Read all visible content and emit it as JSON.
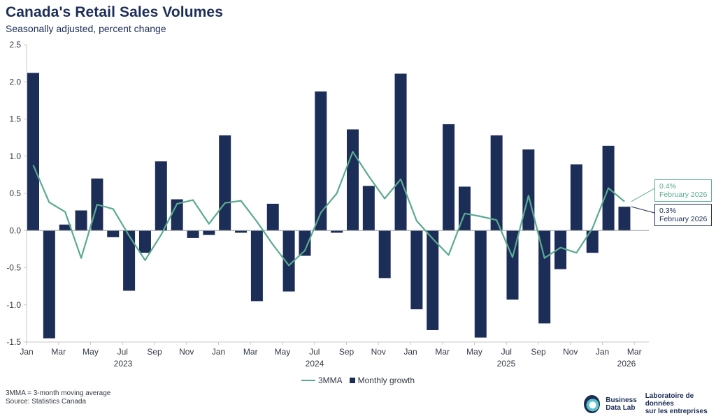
{
  "header": {
    "title": "Canada's Retail Sales Volumes",
    "subtitle": "Seasonally adjusted, percent change"
  },
  "chart_data": {
    "type": "bar",
    "title": "Canada's Retail Sales Volumes",
    "subtitle": "Seasonally adjusted, percent change",
    "xlabel": "",
    "ylabel": "",
    "ylim": [
      -1.5,
      2.5
    ],
    "yticks": [
      "2.5",
      "2.0",
      "1.5",
      "1.0",
      "0.5",
      "0.0",
      "-0.5",
      "-1.0",
      "-1.5"
    ],
    "ytick_values": [
      2.5,
      2.0,
      1.5,
      1.0,
      0.5,
      0.0,
      -0.5,
      -1.0,
      -1.5
    ],
    "xtick_labels": [
      "Jan",
      "Mar",
      "May",
      "Jul",
      "Sep",
      "Nov",
      "Jan",
      "Mar",
      "May",
      "Jul",
      "Sep",
      "Nov",
      "Jan",
      "Mar",
      "May",
      "Jul",
      "Sep",
      "Nov",
      "Jan",
      "Mar"
    ],
    "year_labels": [
      "2023",
      "2024",
      "2025",
      "2026"
    ],
    "categories": [
      "Jan 2023",
      "Feb 2023",
      "Mar 2023",
      "Apr 2023",
      "May 2023",
      "Jun 2023",
      "Jul 2023",
      "Aug 2023",
      "Sep 2023",
      "Oct 2023",
      "Nov 2023",
      "Dec 2023",
      "Jan 2024",
      "Feb 2024",
      "Mar 2024",
      "Apr 2024",
      "May 2024",
      "Jun 2024",
      "Jul 2024",
      "Aug 2024",
      "Sep 2024",
      "Oct 2024",
      "Nov 2024",
      "Dec 2024",
      "Jan 2025",
      "Feb 2025",
      "Mar 2025",
      "Apr 2025",
      "May 2025",
      "Jun 2025",
      "Jul 2025",
      "Aug 2025",
      "Sep 2025",
      "Oct 2025",
      "Nov 2025",
      "Dec 2025",
      "Jan 2026",
      "Feb 2026"
    ],
    "series": [
      {
        "name": "Monthly growth",
        "type": "bar",
        "color": "#1c2d57",
        "values": [
          2.12,
          -1.45,
          0.08,
          0.27,
          0.7,
          -0.09,
          -0.81,
          -0.3,
          0.93,
          0.42,
          -0.1,
          -0.06,
          1.28,
          -0.03,
          -0.95,
          0.36,
          -0.82,
          -0.34,
          1.87,
          -0.03,
          1.36,
          0.6,
          -0.64,
          2.11,
          -1.06,
          -1.34,
          1.43,
          0.59,
          -1.44,
          1.28,
          -0.93,
          1.09,
          -1.25,
          -0.52,
          0.89,
          -0.3,
          1.14,
          0.32
        ]
      },
      {
        "name": "3MMA",
        "type": "line",
        "color": "#5aaa8f",
        "values": [
          0.88,
          0.38,
          0.25,
          -0.37,
          0.35,
          0.29,
          -0.07,
          -0.4,
          -0.06,
          0.36,
          0.41,
          0.09,
          0.37,
          0.4,
          0.12,
          -0.19,
          -0.47,
          -0.27,
          0.24,
          0.5,
          1.06,
          0.73,
          0.43,
          0.69,
          0.13,
          -0.11,
          -0.33,
          0.23,
          0.19,
          0.14,
          -0.36,
          0.47,
          -0.37,
          -0.23,
          -0.3,
          0.03,
          0.57,
          0.39
        ]
      }
    ],
    "legend": [
      "3MMA",
      "Monthly growth"
    ],
    "legend_position": "bottom-center",
    "annotations": [
      {
        "series": "3MMA",
        "value_label": "0.4%",
        "period": "February 2026"
      },
      {
        "series": "Monthly growth",
        "value_label": "0.3%",
        "period": "February 2026"
      }
    ]
  },
  "footer": {
    "note": "3MMA = 3-month moving average",
    "source": "Source: Statistics Canada"
  },
  "logo": {
    "en_line1": "Business",
    "en_line2": "Data Lab",
    "fr_line1": "Laboratoire de données",
    "fr_line2": "sur les entreprises",
    "ring_color": "#5bc3c8",
    "inner_color": "#1c2d57"
  }
}
